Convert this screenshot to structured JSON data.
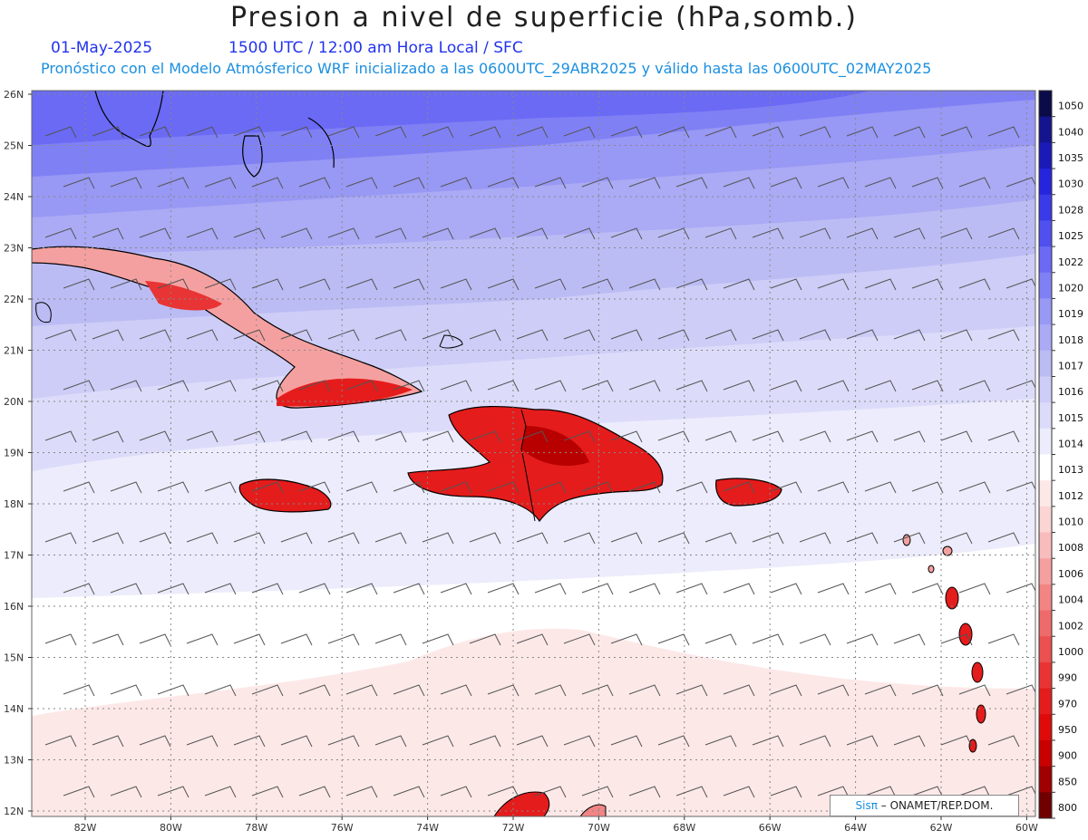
{
  "title": "Presion a nivel de superficie (hPa,somb.)",
  "date": "01-May-2025",
  "valid_time": "1500 UTC / 12:00 am Hora Local / SFC",
  "model_info": "Pronóstico con el Modelo Atmósferico WRF inicializado a las 0600UTC_29ABR2025 y válido hasta las  0600UTC_02MAY2025",
  "lat_labels": [
    "26N",
    "25N",
    "24N",
    "23N",
    "22N",
    "21N",
    "20N",
    "19N",
    "18N",
    "17N",
    "16N",
    "15N",
    "14N",
    "13N",
    "12N"
  ],
  "lon_labels": [
    "82W",
    "80W",
    "78W",
    "76W",
    "74W",
    "72W",
    "70W",
    "68W",
    "66W",
    "64W",
    "62W",
    "60W"
  ],
  "colorbar": {
    "levels": [
      "1050",
      "1040",
      "1035",
      "1030",
      "1028",
      "1025",
      "1022",
      "1020",
      "1019",
      "1018",
      "1017",
      "1016",
      "1015",
      "1014",
      "1013",
      "1012",
      "1010",
      "1008",
      "1006",
      "1004",
      "1002",
      "1000",
      "990",
      "970",
      "950",
      "900",
      "850",
      "800"
    ],
    "colors": [
      "#0b0b4a",
      "#14148f",
      "#1a1ab8",
      "#2525dd",
      "#3a3ae8",
      "#5050f0",
      "#6a6af5",
      "#8080f5",
      "#9898f5",
      "#aaaaf5",
      "#bcbcf5",
      "#cdcdf7",
      "#dcdcfa",
      "#ececfc",
      "#ffffff",
      "#fde8e8",
      "#fbd4d4",
      "#f8bcbc",
      "#f5a0a0",
      "#f28484",
      "#ef6a6a",
      "#ec5050",
      "#e83434",
      "#e41c1c",
      "#df0a0a",
      "#c80000",
      "#a00000",
      "#700000"
    ]
  },
  "credit": {
    "brand": "Sisπ",
    "text": " – ONAMET/REP.DOM."
  }
}
